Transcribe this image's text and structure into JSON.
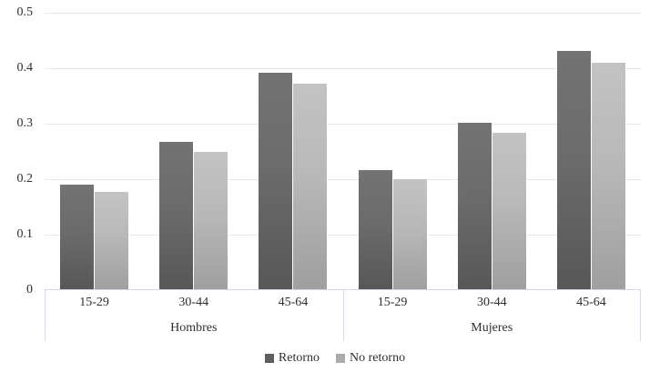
{
  "chart_data": {
    "type": "bar",
    "title": "",
    "xlabel": "",
    "ylabel": "",
    "ylim": [
      0,
      0.5
    ],
    "y_ticks": [
      "0.5",
      "0.4",
      "0.3",
      "0.2",
      "0.1",
      "0"
    ],
    "grid": true,
    "legend_position": "bottom",
    "groups": [
      "Hombres",
      "Mujeres"
    ],
    "categories": [
      "15-29",
      "30-44",
      "45-64",
      "15-29",
      "30-44",
      "45-64"
    ],
    "series": [
      {
        "name": "Retorno",
        "color": "#5f5f5f",
        "values": [
          0.19,
          0.268,
          0.392,
          0.217,
          0.301,
          0.432
        ]
      },
      {
        "name": "No retorno",
        "color": "#ababab",
        "values": [
          0.177,
          0.25,
          0.372,
          0.2,
          0.284,
          0.41
        ]
      }
    ]
  },
  "legend": {
    "items": [
      {
        "label": "Retorno"
      },
      {
        "label": "No retorno"
      }
    ]
  }
}
